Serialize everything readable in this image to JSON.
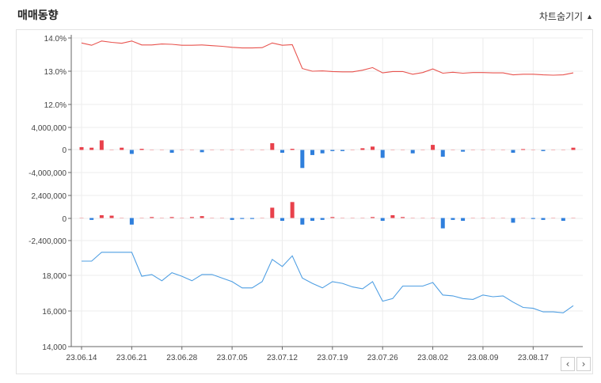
{
  "header": {
    "title": "매매동향",
    "toggle_label": "차트숨기기",
    "toggle_icon": "triangle-up-icon"
  },
  "nav": {
    "prev_symbol": "‹",
    "next_symbol": "›"
  },
  "colors": {
    "ratio_line": "#e8534e",
    "positive_bar": "#e8414b",
    "negative_bar": "#2f7fdc",
    "price_line": "#4f9fe3",
    "grid": "#ececec",
    "axis": "#666666"
  },
  "chart_data": {
    "type": "line",
    "x_tick_labels": [
      "23.06.14",
      "23.06.21",
      "23.06.28",
      "23.07.05",
      "23.07.12",
      "23.07.19",
      "23.07.26",
      "23.08.02",
      "23.08.09",
      "23.08.17"
    ],
    "x_tick_indices": [
      0,
      5,
      10,
      15,
      20,
      25,
      30,
      35,
      40,
      45
    ],
    "num_points": 50,
    "panels": [
      {
        "type": "line",
        "ylim": [
          12.0,
          14.0
        ],
        "y_ticks": [
          "14.0%",
          "13.0%",
          "12.0%"
        ],
        "y_tick_values": [
          14.0,
          13.0,
          12.0
        ],
        "values": [
          13.85,
          13.78,
          13.91,
          13.87,
          13.84,
          13.91,
          13.79,
          13.79,
          13.82,
          13.81,
          13.78,
          13.78,
          13.79,
          13.77,
          13.75,
          13.72,
          13.7,
          13.7,
          13.71,
          13.85,
          13.78,
          13.8,
          13.08,
          13.0,
          13.01,
          12.99,
          12.98,
          12.98,
          13.03,
          13.11,
          12.95,
          12.99,
          12.99,
          12.91,
          12.96,
          13.07,
          12.94,
          12.97,
          12.94,
          12.96,
          12.96,
          12.95,
          12.95,
          12.89,
          12.91,
          12.91,
          12.89,
          12.88,
          12.89,
          12.95
        ]
      },
      {
        "type": "bar",
        "ylim": [
          -6000000,
          6000000
        ],
        "y_ticks": [
          "4,000,000",
          "0",
          "-4,000,000"
        ],
        "y_tick_values": [
          4000000,
          0,
          -4000000
        ],
        "values": [
          500000,
          400000,
          1700000,
          0,
          400000,
          -700000,
          200000,
          0,
          0,
          -500000,
          0,
          0,
          -400000,
          0,
          0,
          0,
          0,
          0,
          0,
          1200000,
          -500000,
          200000,
          -3200000,
          -900000,
          -600000,
          -200000,
          -200000,
          0,
          300000,
          600000,
          -1400000,
          0,
          0,
          -600000,
          0,
          900000,
          -1200000,
          0,
          -300000,
          0,
          0,
          0,
          0,
          -500000,
          150000,
          0,
          -200000,
          0,
          0,
          400000
        ]
      },
      {
        "type": "bar",
        "ylim": [
          -3600000,
          3600000
        ],
        "y_ticks": [
          "2,400,000",
          "0",
          "-2,400,000"
        ],
        "y_tick_values": [
          2400000,
          0,
          -2400000
        ],
        "values": [
          0,
          -200000,
          300000,
          250000,
          0,
          -700000,
          0,
          100000,
          0,
          100000,
          0,
          100000,
          200000,
          0,
          0,
          -200000,
          -100000,
          -100000,
          0,
          1100000,
          -300000,
          1700000,
          -700000,
          -300000,
          -200000,
          100000,
          0,
          0,
          0,
          100000,
          -300000,
          300000,
          100000,
          0,
          0,
          0,
          -1100000,
          -200000,
          -300000,
          0,
          0,
          0,
          0,
          -500000,
          0,
          -100000,
          -200000,
          0,
          -300000,
          0
        ]
      },
      {
        "type": "line",
        "ylim": [
          14000,
          19500
        ],
        "y_ticks": [
          "18,000",
          "16,000",
          "14,000"
        ],
        "y_tick_values": [
          18000,
          16000,
          14000
        ],
        "values": [
          18800,
          18800,
          19300,
          19300,
          19300,
          19300,
          17950,
          18050,
          17700,
          18150,
          17950,
          17700,
          18050,
          18050,
          17850,
          17650,
          17300,
          17300,
          17650,
          18900,
          18500,
          19100,
          17850,
          17550,
          17300,
          17650,
          17550,
          17350,
          17250,
          17650,
          16550,
          16700,
          17400,
          17400,
          17400,
          17600,
          16900,
          16850,
          16700,
          16650,
          16900,
          16800,
          16850,
          16500,
          16200,
          16150,
          15950,
          15950,
          15900,
          16300
        ]
      }
    ]
  }
}
